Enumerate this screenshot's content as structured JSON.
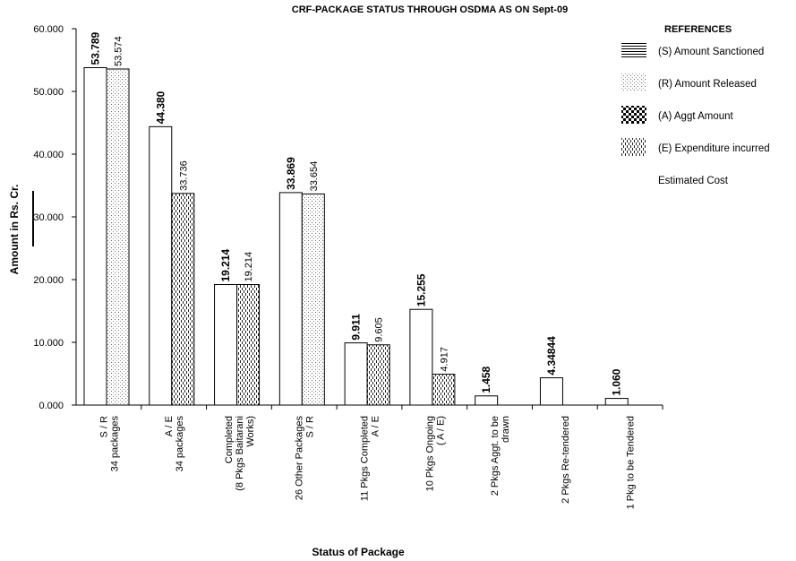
{
  "chart_data": {
    "type": "bar",
    "title": "CRF-PACKAGE STATUS THROUGH OSDMA AS ON Sept-09",
    "xlabel": "Status of Package",
    "ylabel": "Amount in Rs. Cr.",
    "ylim": [
      0,
      60
    ],
    "yticks": [
      "0.000",
      "10.000",
      "20.000",
      "30.000",
      "40.000",
      "50.000",
      "60.000"
    ],
    "legend_title": "REFERENCES",
    "legend_position": "top-right",
    "legend": [
      {
        "key": "S",
        "label": "(S) Amount Sanctioned",
        "pattern": "hlines"
      },
      {
        "key": "R",
        "label": "(R) Amount Released",
        "pattern": "dots"
      },
      {
        "key": "A",
        "label": "(A) Aggt Amount",
        "pattern": "checker"
      },
      {
        "key": "E",
        "label": "(E) Expenditure incurred",
        "pattern": "vdash"
      },
      {
        "key": "C",
        "label": "Estimated Cost",
        "pattern": "none"
      }
    ],
    "categories": [
      {
        "lines": [
          "S / R",
          "34 packages"
        ],
        "bars": [
          {
            "value": 53.789,
            "label": "53.789",
            "bold": true,
            "pattern": "plain"
          },
          {
            "value": 53.574,
            "label": "53.574",
            "bold": false,
            "pattern": "dots"
          }
        ]
      },
      {
        "lines": [
          "A / E",
          "34 packages"
        ],
        "bars": [
          {
            "value": 44.38,
            "label": "44.380",
            "bold": true,
            "pattern": "plain"
          },
          {
            "value": 33.736,
            "label": "33.736",
            "bold": false,
            "pattern": "vdash"
          }
        ]
      },
      {
        "lines": [
          "Completed",
          "(8 Pkgs Baitarani",
          "Works)"
        ],
        "bars": [
          {
            "value": 19.214,
            "label": "19.214",
            "bold": true,
            "pattern": "plain"
          },
          {
            "value": 19.214,
            "label": "19.214",
            "bold": false,
            "pattern": "vdash"
          }
        ]
      },
      {
        "lines": [
          "26 Other Packages",
          "S / R"
        ],
        "bars": [
          {
            "value": 33.869,
            "label": "33.869",
            "bold": true,
            "pattern": "plain"
          },
          {
            "value": 33.654,
            "label": "33.654",
            "bold": false,
            "pattern": "dots"
          }
        ]
      },
      {
        "lines": [
          "11 Pkgs Completed",
          "A / E"
        ],
        "bars": [
          {
            "value": 9.911,
            "label": "9.911",
            "bold": true,
            "pattern": "plain"
          },
          {
            "value": 9.605,
            "label": "9.605",
            "bold": false,
            "pattern": "vdash"
          }
        ]
      },
      {
        "lines": [
          "10 Pkgs Ongoing",
          "( A / E)"
        ],
        "bars": [
          {
            "value": 15.255,
            "label": "15.255",
            "bold": true,
            "pattern": "plain"
          },
          {
            "value": 4.917,
            "label": "4.917",
            "bold": false,
            "pattern": "vdash"
          }
        ]
      },
      {
        "lines": [
          "2 Pkgs Aggt. to be",
          "drawn"
        ],
        "bars": [
          {
            "value": 1.458,
            "label": "1.458",
            "bold": true,
            "pattern": "plain"
          }
        ]
      },
      {
        "lines": [
          "2 Pkgs Re-tendered"
        ],
        "bars": [
          {
            "value": 4.34844,
            "label": "4.34844",
            "bold": true,
            "pattern": "plain"
          }
        ]
      },
      {
        "lines": [
          "1 Pkg to be Tendered"
        ],
        "bars": [
          {
            "value": 1.06,
            "label": "1.060",
            "bold": true,
            "pattern": "plain"
          }
        ]
      }
    ]
  }
}
